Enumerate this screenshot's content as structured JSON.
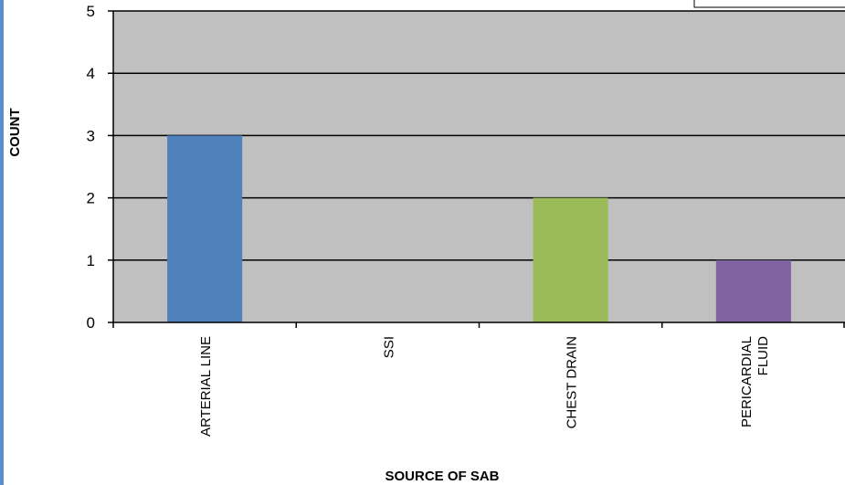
{
  "chart_data": {
    "type": "bar",
    "categories": [
      "ARTERIAL LINE",
      "SSI",
      "CHEST DRAIN",
      "PERICARDIAL FLUID"
    ],
    "category_label_lines": [
      [
        "ARTERIAL LINE"
      ],
      [
        "SSI"
      ],
      [
        "CHEST DRAIN"
      ],
      [
        "PERICARDIAL",
        "FLUID"
      ]
    ],
    "values": [
      3,
      0,
      2,
      1
    ],
    "bar_colors": [
      "#4f81bd",
      "#c0504d",
      "#9bbb59",
      "#8064a2"
    ],
    "title": "",
    "xlabel": "SOURCE OF SAB",
    "ylabel": "COUNT",
    "ylim": [
      0,
      5
    ],
    "yticks": [
      "0",
      "1",
      "2",
      "3",
      "4",
      "5"
    ],
    "grid": true,
    "plot_background": "#c0c0c0",
    "frame_color": "#5b8fc9"
  }
}
